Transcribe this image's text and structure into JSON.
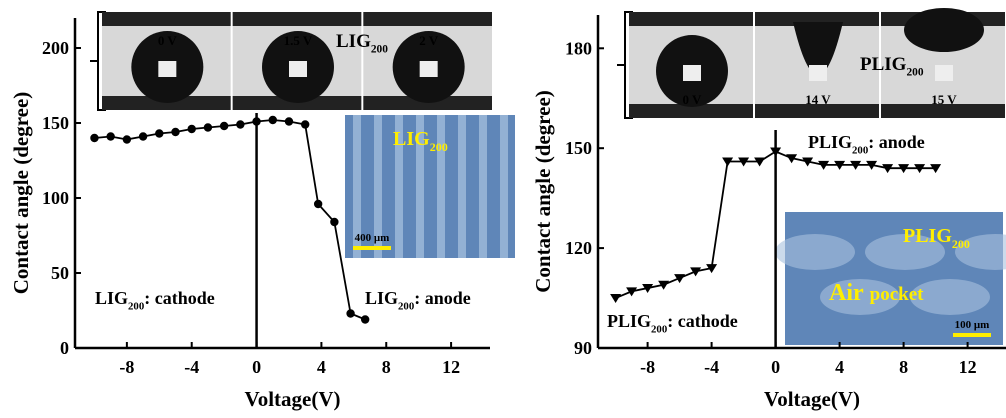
{
  "chart_data": [
    {
      "type": "line",
      "xlabel": "Voltage(V)",
      "ylabel": "Contact angle (degree)",
      "x": [
        -10,
        -9,
        -8,
        -7,
        -6,
        -5,
        -4,
        -3,
        -2,
        -1,
        0,
        1,
        2,
        3,
        3.8,
        4.8,
        5.8,
        6.7
      ],
      "series": [
        {
          "color": "#000000",
          "marker": "circle",
          "values": [
            140,
            141,
            139,
            141,
            143,
            144,
            146,
            147,
            148,
            149,
            151,
            152,
            151,
            149,
            96,
            84,
            23,
            19
          ]
        }
      ],
      "xlim": [
        -11.2,
        14.4
      ],
      "ylim": [
        0,
        220
      ],
      "xticks": [
        -8,
        -4,
        0,
        4,
        8,
        12
      ],
      "yticks": [
        0,
        50,
        100,
        150,
        200
      ],
      "annotations": [
        {
          "main": "LIG",
          "sub": "200",
          "rest": ": cathode"
        },
        {
          "main": "LIG",
          "sub": "200",
          "rest": ": anode"
        }
      ],
      "photo": {
        "labels": [
          "0 V",
          "1.5 V",
          "2 V"
        ],
        "title": {
          "main": "LIG",
          "sub": "200"
        }
      },
      "sem": {
        "title": {
          "main": "LIG",
          "sub": "200"
        },
        "scale": "400 μm"
      }
    },
    {
      "type": "line",
      "xlabel": "Voltage(V)",
      "ylabel": "Contact angle (degree)",
      "x": [
        -10,
        -9,
        -8,
        -7,
        -6,
        -5,
        -4,
        -3,
        -2,
        -1,
        0,
        1,
        2,
        3,
        4,
        5,
        6,
        7,
        8,
        9,
        10
      ],
      "series": [
        {
          "color": "#000000",
          "marker": "triangle-down",
          "values": [
            105,
            107,
            108,
            109,
            111,
            113,
            114,
            146,
            146,
            146,
            149,
            147,
            146,
            145,
            145,
            145,
            145,
            144,
            144,
            144,
            144
          ]
        }
      ],
      "xlim": [
        -11.1,
        14.4
      ],
      "ylim": [
        90,
        190
      ],
      "xticks": [
        -8,
        -4,
        0,
        4,
        8,
        12
      ],
      "yticks": [
        90,
        120,
        150,
        180
      ],
      "annotations": [
        {
          "main": "PLIG",
          "sub": "200",
          "rest": ": anode"
        },
        {
          "main": "PLIG",
          "sub": "200",
          "rest": ": cathode"
        }
      ],
      "photo": {
        "labels": [
          "0 V",
          "14 V",
          "15 V"
        ],
        "title": {
          "main": "PLIG",
          "sub": "200"
        }
      },
      "sem": {
        "title": {
          "main": "PLIG",
          "sub": "200"
        },
        "big": "Air",
        "small": "pocket",
        "scale": "100 μm"
      }
    }
  ]
}
